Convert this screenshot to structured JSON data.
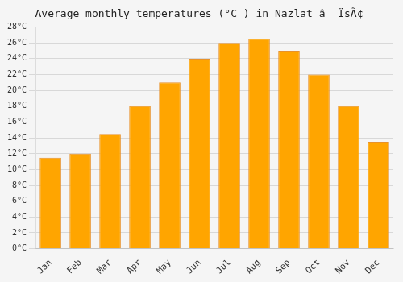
{
  "chart_data": {
    "type": "bar",
    "title": "Average monthly temperatures (°C ) in Nazlat â  ÏsÃ¢",
    "categories": [
      "Jan",
      "Feb",
      "Mar",
      "Apr",
      "May",
      "Jun",
      "Jul",
      "Aug",
      "Sep",
      "Oct",
      "Nov",
      "Dec"
    ],
    "values": [
      11.5,
      12.0,
      14.5,
      18.0,
      21.0,
      24.0,
      26.0,
      26.5,
      25.0,
      22.0,
      18.0,
      13.5
    ],
    "color": "#FFA500",
    "ylim": [
      0,
      28
    ],
    "yticks": [
      {
        "value": 0,
        "label": "0°C"
      },
      {
        "value": 2,
        "label": "2°C"
      },
      {
        "value": 4,
        "label": "4°C"
      },
      {
        "value": 6,
        "label": "6°C"
      },
      {
        "value": 8,
        "label": "8°C"
      },
      {
        "value": 10,
        "label": "10°C"
      },
      {
        "value": 12,
        "label": "12°C"
      },
      {
        "value": 14,
        "label": "14°C"
      },
      {
        "value": 16,
        "label": "16°C"
      },
      {
        "value": 18,
        "label": "18°C"
      },
      {
        "value": 20,
        "label": "20°C"
      },
      {
        "value": 22,
        "label": "22°C"
      },
      {
        "value": 24,
        "label": "24°C"
      },
      {
        "value": 26,
        "label": "26°C"
      },
      {
        "value": 28,
        "label": "28°C"
      }
    ],
    "grid": true
  }
}
